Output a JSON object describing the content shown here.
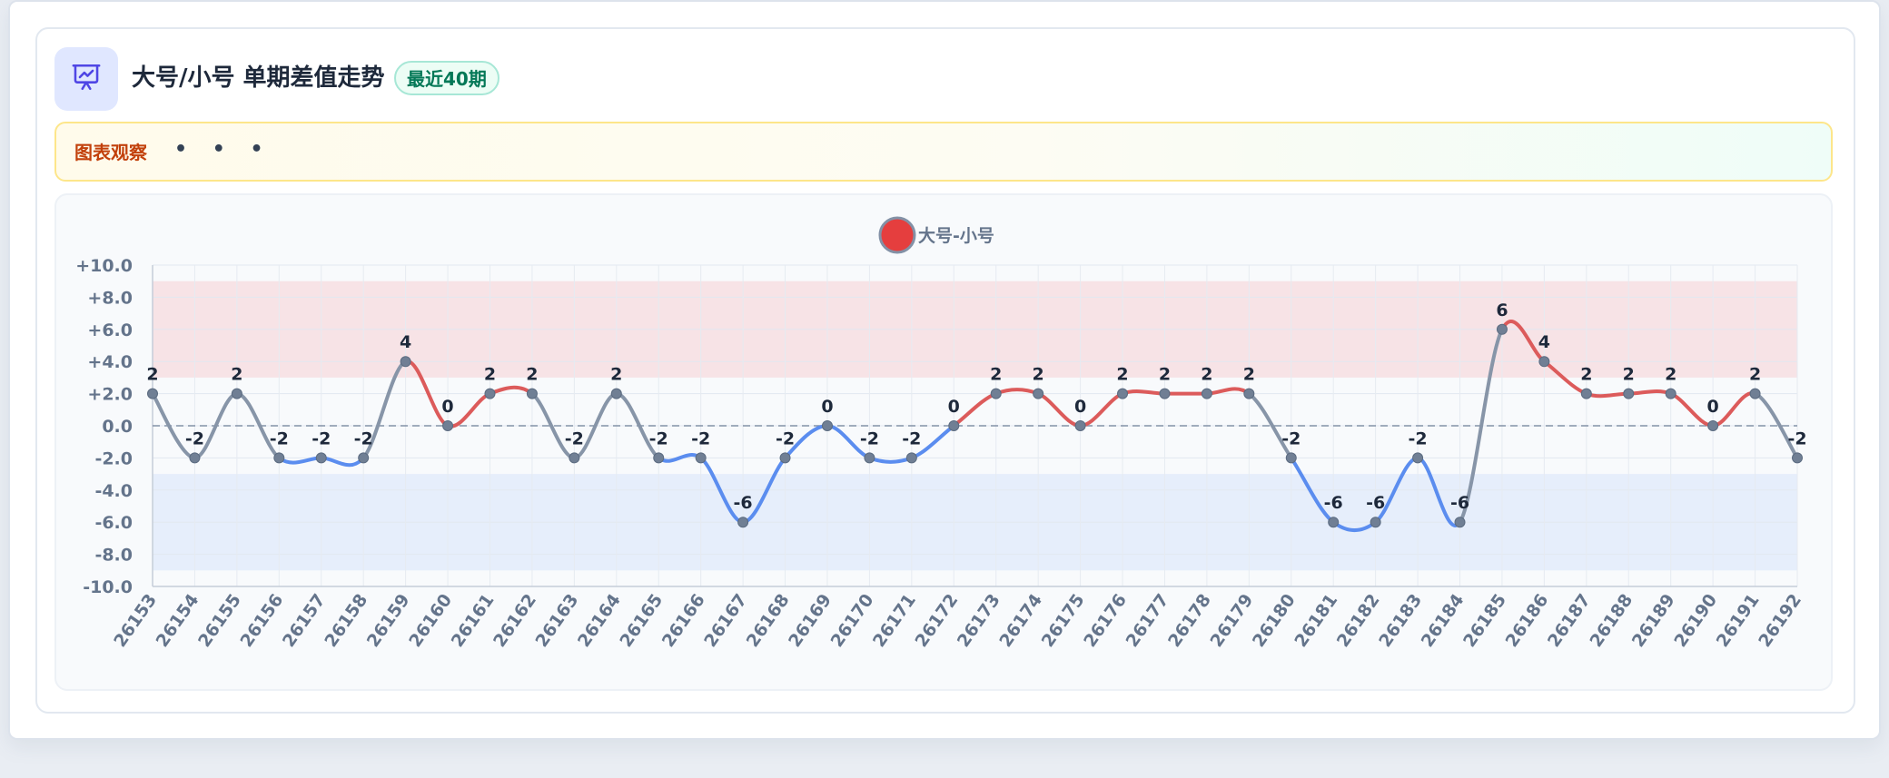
{
  "header": {
    "title": "大号/小号 单期差值走势",
    "badge": "最近40期"
  },
  "observation": {
    "label": "图表观察",
    "dots": "• • •"
  },
  "icons": {
    "chart_icon": "presentation-chart-icon"
  },
  "colors": {
    "positive": "#dc5b5b",
    "negative": "#5b8def",
    "neutral": "#8795a8",
    "positive_band": "#f7e3e6",
    "negative_band": "#e6eefb",
    "legend_dot": "#e53e3e"
  },
  "chart_data": {
    "type": "line",
    "legend": [
      "大号-小号"
    ],
    "categories": [
      "26153",
      "26154",
      "26155",
      "26156",
      "26157",
      "26158",
      "26159",
      "26160",
      "26161",
      "26162",
      "26163",
      "26164",
      "26165",
      "26166",
      "26167",
      "26168",
      "26169",
      "26170",
      "26171",
      "26172",
      "26173",
      "26174",
      "26175",
      "26176",
      "26177",
      "26178",
      "26179",
      "26180",
      "26181",
      "26182",
      "26183",
      "26184",
      "26185",
      "26186",
      "26187",
      "26188",
      "26189",
      "26190",
      "26191",
      "26192"
    ],
    "series": [
      {
        "name": "大号-小号",
        "values": [
          2,
          -2,
          2,
          -2,
          -2,
          -2,
          4,
          0,
          2,
          2,
          -2,
          2,
          -2,
          -2,
          -6,
          -2,
          0,
          -2,
          -2,
          0,
          2,
          2,
          0,
          2,
          2,
          2,
          2,
          -2,
          -6,
          -6,
          -2,
          -6,
          6,
          4,
          2,
          2,
          2,
          0,
          2,
          -2
        ]
      }
    ],
    "ylim": [
      -10,
      10
    ],
    "yticks": [
      "+10.0",
      "+8.0",
      "+6.0",
      "+4.0",
      "+2.0",
      "0.0",
      "-2.0",
      "-4.0",
      "-6.0",
      "-8.0",
      "-10.0"
    ],
    "bands": [
      {
        "from": 3,
        "to": 9,
        "kind": "positive"
      },
      {
        "from": -9,
        "to": -3,
        "kind": "negative"
      }
    ],
    "zero_line": true,
    "grid": true,
    "legend_position": "top-center",
    "xlabel": "",
    "ylabel": ""
  }
}
